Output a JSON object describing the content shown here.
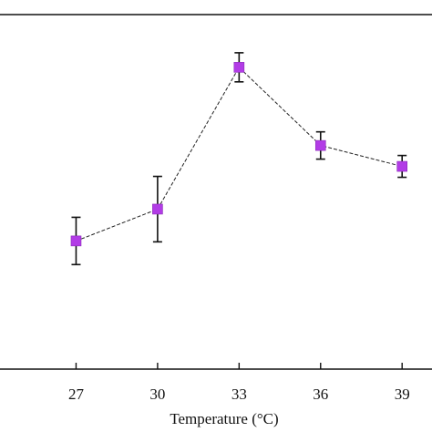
{
  "chart_data": {
    "type": "line",
    "xlabel": "Temperature (°C)",
    "ylabel": "",
    "x": [
      27,
      30,
      33,
      36,
      39
    ],
    "x_tick_labels": [
      "27",
      "30",
      "33",
      "36",
      "39"
    ],
    "series": [
      {
        "values": [
          10.9,
          14.4,
          30.0,
          21.4,
          19.1
        ],
        "error": [
          2.6,
          3.6,
          1.6,
          1.5,
          1.2
        ],
        "marker": "square",
        "line_style": "dashed"
      }
    ],
    "xlim": [
      24.2,
      40.1
    ],
    "ylim": [
      -3.2,
      35.8
    ],
    "grid": false,
    "legend": "none",
    "colors": {
      "marker": "#b23ce6",
      "line": "#222222",
      "axis": "#111111"
    }
  }
}
